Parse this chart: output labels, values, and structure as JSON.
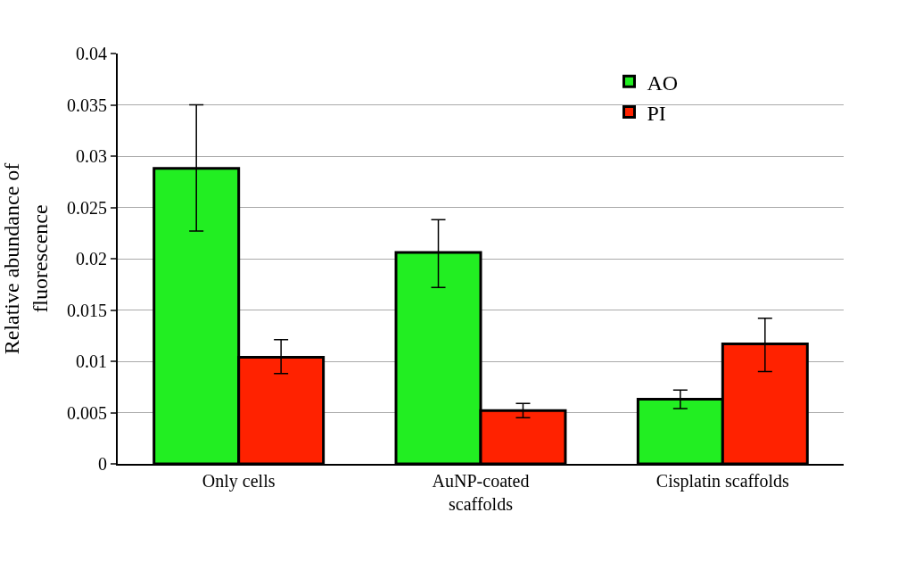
{
  "chart_data": {
    "type": "bar",
    "ylabel": "Relative abundance of fluorescence",
    "categories": [
      "Only cells",
      "AuNP-coated scaffolds",
      "Cisplatin scaffolds"
    ],
    "series": [
      {
        "name": "AO",
        "color": "#22ee22",
        "values": [
          0.0288,
          0.0206,
          0.0063
        ],
        "errors": [
          [
            0.0227,
            0.035
          ],
          [
            0.0172,
            0.0238
          ],
          [
            0.0054,
            0.0072
          ]
        ]
      },
      {
        "name": "PI",
        "color": "#ff2200",
        "values": [
          0.0104,
          0.0052,
          0.0117
        ],
        "errors": [
          [
            0.0088,
            0.0121
          ],
          [
            0.0045,
            0.0059
          ],
          [
            0.009,
            0.0142
          ]
        ]
      }
    ],
    "ylim": [
      0,
      0.04
    ],
    "yticks": [
      0,
      0.005,
      0.01,
      0.015,
      0.02,
      0.025,
      0.03,
      0.035,
      0.04
    ],
    "grid": "y",
    "legend": "top right"
  }
}
